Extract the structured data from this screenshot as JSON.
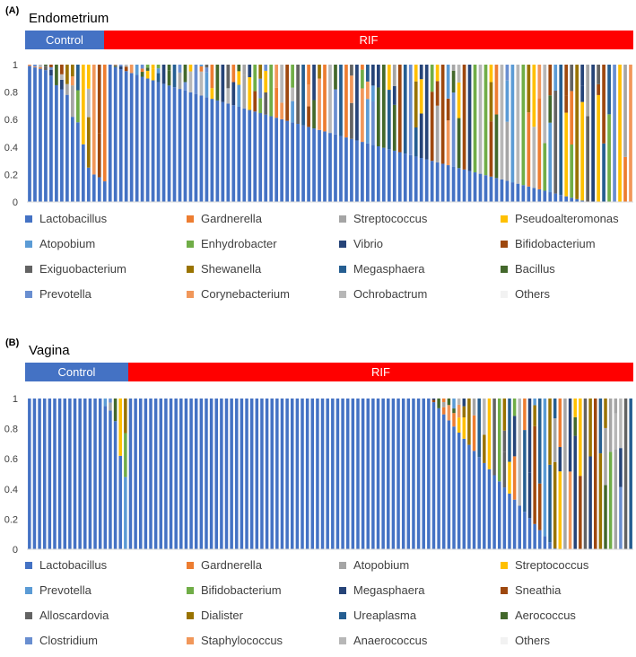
{
  "chart_data": [
    {
      "type": "bar",
      "stacked": true,
      "panel_label": "(A)",
      "title": "Endometrium",
      "groups": [
        {
          "label": "Control",
          "n_samples": 15,
          "color": "#4472C4"
        },
        {
          "label": "RIF",
          "n_samples": 98,
          "color": "#FF0000"
        }
      ],
      "ylim": [
        0,
        1
      ],
      "yticks": [
        "0",
        "0.2",
        "0.4",
        "0.6",
        "0.8",
        "1"
      ],
      "grid": false,
      "legend_position": "bottom",
      "series": [
        {
          "name": "Lactobacillus",
          "color": "#4472C4"
        },
        {
          "name": "Gardnerella",
          "color": "#ED7D31"
        },
        {
          "name": "Streptococcus",
          "color": "#A5A5A5"
        },
        {
          "name": "Pseudoalteromonas",
          "color": "#FFC000"
        },
        {
          "name": "Atopobium",
          "color": "#5B9BD5"
        },
        {
          "name": "Enhydrobacter",
          "color": "#70AD47"
        },
        {
          "name": "Vibrio",
          "color": "#264478"
        },
        {
          "name": "Bifidobacterium",
          "color": "#9E480E"
        },
        {
          "name": "Exiguobacterium",
          "color": "#636363"
        },
        {
          "name": "Shewanella",
          "color": "#997300"
        },
        {
          "name": "Megasphaera",
          "color": "#255E91"
        },
        {
          "name": "Bacillus",
          "color": "#43682B"
        },
        {
          "name": "Prevotella",
          "color": "#698ED0"
        },
        {
          "name": "Corynebacterium",
          "color": "#F1975A"
        },
        {
          "name": "Ochrobactrum",
          "color": "#B7B7B7"
        },
        {
          "name": "Others",
          "color": "#F2F2F2"
        }
      ],
      "lactobacillus_by_sample": {
        "control": [
          0.99,
          0.98,
          0.97,
          0.96,
          0.92,
          0.85,
          0.82,
          0.78,
          0.62,
          0.58,
          0.42,
          0.25,
          0.2,
          0.18,
          0.15
        ],
        "rif_start": 1.0,
        "rif_end": 0.0
      }
    },
    {
      "type": "bar",
      "stacked": true,
      "panel_label": "(B)",
      "title": "Vagina",
      "groups": [
        {
          "label": "Control",
          "n_samples": 20,
          "color": "#4472C4"
        },
        {
          "label": "RIF",
          "n_samples": 100,
          "color": "#FF0000"
        }
      ],
      "ylim": [
        0,
        1
      ],
      "yticks": [
        "0",
        "0.2",
        "0.4",
        "0.6",
        "0.8",
        "1"
      ],
      "grid": false,
      "legend_position": "bottom",
      "series": [
        {
          "name": "Lactobacillus",
          "color": "#4472C4"
        },
        {
          "name": "Gardnerella",
          "color": "#ED7D31"
        },
        {
          "name": "Atopobium",
          "color": "#A5A5A5"
        },
        {
          "name": "Streptococcus",
          "color": "#FFC000"
        },
        {
          "name": "Prevotella",
          "color": "#5B9BD5"
        },
        {
          "name": "Bifidobacterium",
          "color": "#70AD47"
        },
        {
          "name": "Megasphaera",
          "color": "#264478"
        },
        {
          "name": "Sneathia",
          "color": "#9E480E"
        },
        {
          "name": "Alloscardovia",
          "color": "#636363"
        },
        {
          "name": "Dialister",
          "color": "#997300"
        },
        {
          "name": "Ureaplasma",
          "color": "#255E91"
        },
        {
          "name": "Aerococcus",
          "color": "#43682B"
        },
        {
          "name": "Clostridium",
          "color": "#698ED0"
        },
        {
          "name": "Staphylococcus",
          "color": "#F1975A"
        },
        {
          "name": "Anaerococcus",
          "color": "#B7B7B7"
        },
        {
          "name": "Others",
          "color": "#F2F2F2"
        }
      ]
    }
  ]
}
